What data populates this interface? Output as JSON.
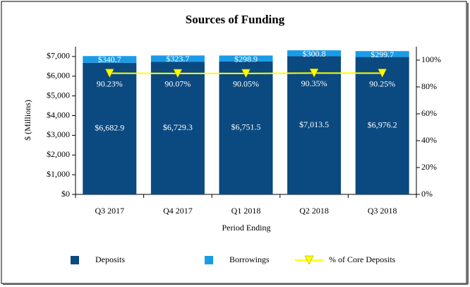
{
  "chart_data": {
    "type": "bar",
    "stacked": true,
    "title": "Sources of Funding",
    "x_label": "Period Ending",
    "y_label": "$ (Millions)",
    "categories": [
      "Q3 2017",
      "Q4 2017",
      "Q1 2018",
      "Q2 2018",
      "Q3 2018"
    ],
    "series": [
      {
        "name": "Deposits",
        "color": "#0b4a80",
        "values": [
          6682.9,
          6729.3,
          6751.5,
          7013.5,
          6976.2
        ],
        "value_labels": [
          "$6,682.9",
          "$6,729.3",
          "$6,751.5",
          "$7,013.5",
          "$6,976.2"
        ]
      },
      {
        "name": "Borrowings",
        "color": "#1a9be8",
        "values": [
          340.7,
          323.7,
          298.9,
          300.8,
          299.7
        ],
        "value_labels": [
          "$340.7",
          "$323.7",
          "$298.9",
          "$300.8",
          "$299.7"
        ]
      },
      {
        "name": "% of Core Deposits",
        "type": "line",
        "axis": "y2",
        "color": "#ffff00",
        "values": [
          90.23,
          90.07,
          90.05,
          90.35,
          90.25
        ],
        "value_labels": [
          "90.23%",
          "90.07%",
          "90.05%",
          "90.35%",
          "90.25%"
        ]
      }
    ],
    "ylim": [
      0,
      7500
    ],
    "yticks": [
      {
        "value": 0,
        "label": "$0"
      },
      {
        "value": 1000,
        "label": "$1,000"
      },
      {
        "value": 2000,
        "label": "$2,000"
      },
      {
        "value": 3000,
        "label": "$3,000"
      },
      {
        "value": 4000,
        "label": "$4,000"
      },
      {
        "value": 5000,
        "label": "$5,000"
      },
      {
        "value": 6000,
        "label": "$6,000"
      },
      {
        "value": 7000,
        "label": "$7,000"
      }
    ],
    "y2lim": [
      0,
      110
    ],
    "y2ticks": [
      {
        "value": 0,
        "label": "0%"
      },
      {
        "value": 20,
        "label": "20%"
      },
      {
        "value": 40,
        "label": "40%"
      },
      {
        "value": 60,
        "label": "60%"
      },
      {
        "value": 80,
        "label": "80%"
      },
      {
        "value": 100,
        "label": "100%"
      }
    ],
    "grid": false,
    "legend": "bottom"
  }
}
